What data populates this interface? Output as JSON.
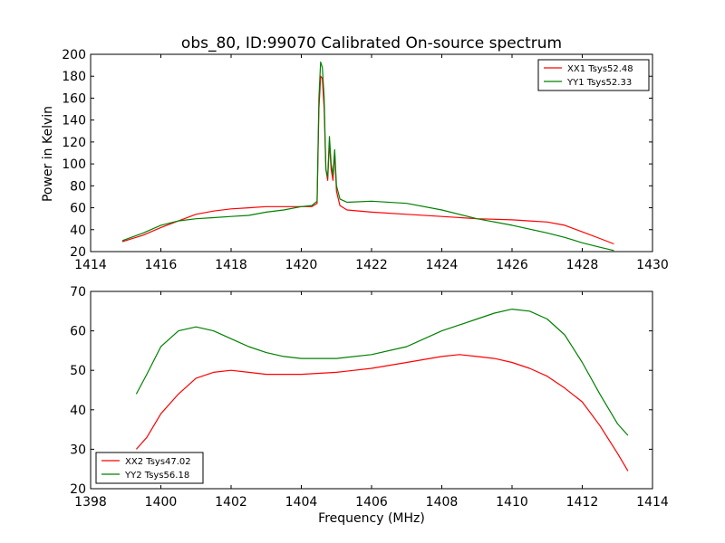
{
  "chart_data": [
    {
      "type": "line",
      "title": "obs_80, ID:99070 Calibrated On-source spectrum",
      "xlabel": "",
      "ylabel": "Power in Kelvin",
      "xlim": [
        1414,
        1430
      ],
      "ylim": [
        20,
        200
      ],
      "xticks": [
        "1414",
        "1416",
        "1418",
        "1420",
        "1422",
        "1424",
        "1426",
        "1428",
        "1430"
      ],
      "yticks": [
        "20",
        "40",
        "60",
        "80",
        "100",
        "120",
        "140",
        "160",
        "180",
        "200"
      ],
      "grid": false,
      "legend_position": "top-right",
      "series": [
        {
          "name": "XX1 Tsys52.48",
          "color": "#ff0000",
          "points": [
            [
              1414.9,
              29
            ],
            [
              1415.5,
              35
            ],
            [
              1416,
              42
            ],
            [
              1416.5,
              48
            ],
            [
              1417,
              54
            ],
            [
              1417.5,
              57
            ],
            [
              1418,
              59
            ],
            [
              1418.5,
              60
            ],
            [
              1419,
              61
            ],
            [
              1419.5,
              61
            ],
            [
              1420,
              61
            ],
            [
              1420.3,
              61
            ],
            [
              1420.45,
              64
            ],
            [
              1420.5,
              150
            ],
            [
              1420.55,
              180
            ],
            [
              1420.6,
              178
            ],
            [
              1420.65,
              150
            ],
            [
              1420.7,
              95
            ],
            [
              1420.75,
              85
            ],
            [
              1420.8,
              120
            ],
            [
              1420.85,
              95
            ],
            [
              1420.9,
              85
            ],
            [
              1420.95,
              110
            ],
            [
              1421,
              75
            ],
            [
              1421.1,
              62
            ],
            [
              1421.3,
              58
            ],
            [
              1422,
              56
            ],
            [
              1423,
              54
            ],
            [
              1424,
              52
            ],
            [
              1425,
              50
            ],
            [
              1426,
              49
            ],
            [
              1426.5,
              48
            ],
            [
              1427,
              47
            ],
            [
              1427.5,
              44
            ],
            [
              1428,
              38
            ],
            [
              1428.5,
              32
            ],
            [
              1428.9,
              27
            ]
          ]
        },
        {
          "name": "YY1 Tsys52.33",
          "color": "#008000",
          "points": [
            [
              1414.9,
              30
            ],
            [
              1415.5,
              37
            ],
            [
              1416,
              44
            ],
            [
              1416.5,
              48
            ],
            [
              1417,
              50
            ],
            [
              1417.5,
              51
            ],
            [
              1418,
              52
            ],
            [
              1418.5,
              53
            ],
            [
              1419,
              56
            ],
            [
              1419.5,
              58
            ],
            [
              1420,
              61
            ],
            [
              1420.3,
              62
            ],
            [
              1420.45,
              66
            ],
            [
              1420.5,
              160
            ],
            [
              1420.55,
              193
            ],
            [
              1420.6,
              188
            ],
            [
              1420.65,
              160
            ],
            [
              1420.7,
              95
            ],
            [
              1420.75,
              88
            ],
            [
              1420.8,
              125
            ],
            [
              1420.85,
              100
            ],
            [
              1420.9,
              90
            ],
            [
              1420.95,
              113
            ],
            [
              1421,
              80
            ],
            [
              1421.1,
              68
            ],
            [
              1421.3,
              65
            ],
            [
              1422,
              66
            ],
            [
              1423,
              64
            ],
            [
              1424,
              58
            ],
            [
              1425,
              50
            ],
            [
              1426,
              44
            ],
            [
              1427,
              37
            ],
            [
              1427.5,
              33
            ],
            [
              1428,
              28
            ],
            [
              1428.5,
              24
            ],
            [
              1428.9,
              21
            ]
          ]
        }
      ]
    },
    {
      "type": "line",
      "title": "",
      "xlabel": "Frequency (MHz)",
      "ylabel": "",
      "xlim": [
        1398,
        1414
      ],
      "ylim": [
        20,
        70
      ],
      "xticks": [
        "1398",
        "1400",
        "1402",
        "1404",
        "1406",
        "1408",
        "1410",
        "1412",
        "1414"
      ],
      "yticks": [
        "20",
        "30",
        "40",
        "50",
        "60",
        "70"
      ],
      "grid": false,
      "legend_position": "bottom-left",
      "series": [
        {
          "name": "XX2 Tsys47.02",
          "color": "#ff0000",
          "points": [
            [
              1399.3,
              30
            ],
            [
              1399.6,
              33
            ],
            [
              1400,
              39
            ],
            [
              1400.5,
              44
            ],
            [
              1401,
              48
            ],
            [
              1401.5,
              49.5
            ],
            [
              1402,
              50
            ],
            [
              1402.5,
              49.5
            ],
            [
              1403,
              49
            ],
            [
              1404,
              49
            ],
            [
              1405,
              49.5
            ],
            [
              1406,
              50.5
            ],
            [
              1407,
              52
            ],
            [
              1408,
              53.5
            ],
            [
              1408.5,
              54
            ],
            [
              1409,
              53.5
            ],
            [
              1409.5,
              53
            ],
            [
              1410,
              52
            ],
            [
              1410.5,
              50.5
            ],
            [
              1411,
              48.5
            ],
            [
              1411.5,
              45.5
            ],
            [
              1412,
              42
            ],
            [
              1412.5,
              36
            ],
            [
              1413,
              29
            ],
            [
              1413.3,
              24.5
            ]
          ]
        },
        {
          "name": "YY2 Tsys56.18",
          "color": "#008000",
          "points": [
            [
              1399.3,
              44
            ],
            [
              1399.6,
              49
            ],
            [
              1400,
              56
            ],
            [
              1400.5,
              60
            ],
            [
              1401,
              61
            ],
            [
              1401.5,
              60
            ],
            [
              1402,
              58
            ],
            [
              1402.5,
              56
            ],
            [
              1403,
              54.5
            ],
            [
              1403.5,
              53.5
            ],
            [
              1404,
              53
            ],
            [
              1405,
              53
            ],
            [
              1406,
              54
            ],
            [
              1407,
              56
            ],
            [
              1408,
              60
            ],
            [
              1408.5,
              61.5
            ],
            [
              1409,
              63
            ],
            [
              1409.5,
              64.5
            ],
            [
              1410,
              65.5
            ],
            [
              1410.5,
              65
            ],
            [
              1411,
              63
            ],
            [
              1411.5,
              59
            ],
            [
              1412,
              52
            ],
            [
              1412.5,
              44
            ],
            [
              1413,
              36.5
            ],
            [
              1413.3,
              33.5
            ]
          ]
        }
      ]
    }
  ]
}
